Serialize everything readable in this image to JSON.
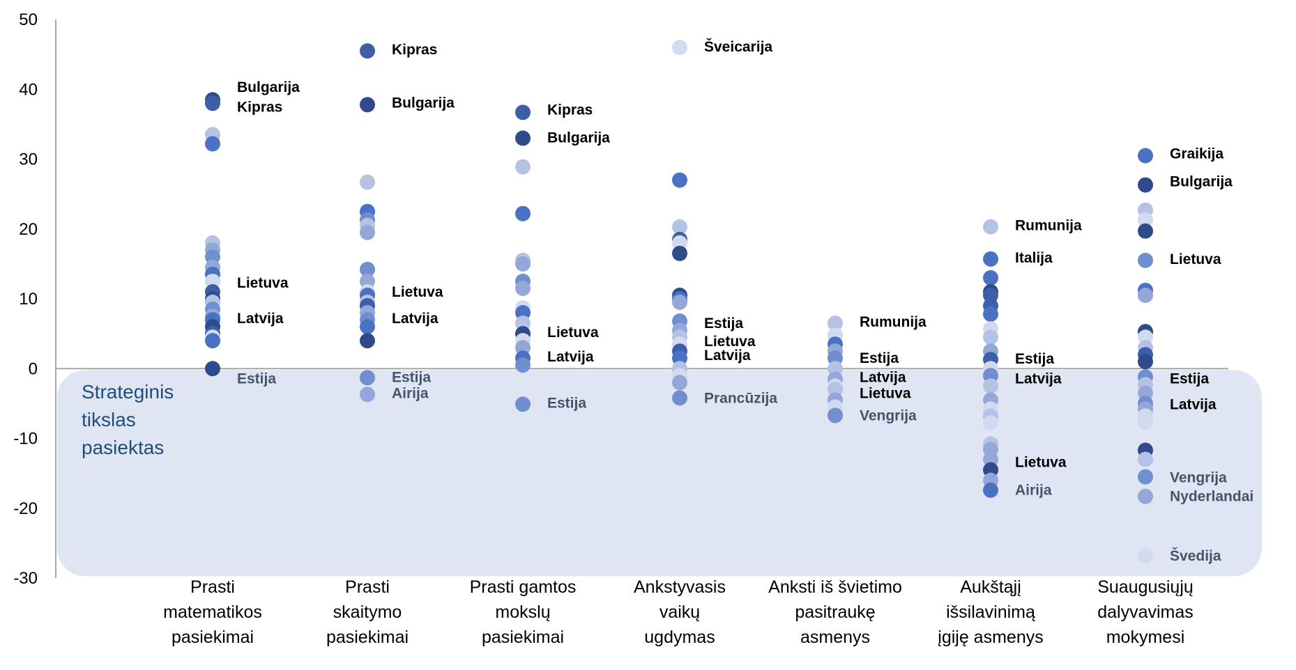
{
  "chart_data": {
    "type": "scatter",
    "title": "",
    "xlabel": "",
    "ylabel": "",
    "ylim": [
      -30,
      50
    ],
    "yticks": [
      50,
      40,
      30,
      20,
      10,
      0,
      -10,
      -20,
      -30
    ],
    "grid": false,
    "legend": "none",
    "zone": {
      "label_lines": [
        "Strateginis",
        "tikslas",
        "pasiektas"
      ],
      "y_range": [
        -30,
        0
      ],
      "color": "#dfe5f3"
    },
    "categories": [
      {
        "lines": [
          "Prasti",
          "matematikos",
          "pasiekimai"
        ]
      },
      {
        "lines": [
          "Prasti",
          "skaitymo",
          "pasiekimai"
        ]
      },
      {
        "lines": [
          "Prasti gamtos",
          "mokslų",
          "pasiekimai"
        ]
      },
      {
        "lines": [
          "Ankstyvasis",
          "vaikų",
          "ugdymas"
        ]
      },
      {
        "lines": [
          "Anksti iš švietimo",
          "pasitraukę",
          "asmenys"
        ]
      },
      {
        "lines": [
          "Aukštąjį",
          "išsilavinimą",
          "įgiję asmenys"
        ]
      },
      {
        "lines": [
          "Suaugusiųjų",
          "dalyvavimas",
          "mokymesi"
        ]
      }
    ],
    "colors": [
      "#2f4b8c",
      "#3c5fa8",
      "#4a72c4",
      "#6f8fcf",
      "#93a8d8",
      "#b5c2e4",
      "#d2daef"
    ],
    "points": [
      [
        [
          38.5,
          0
        ],
        [
          38.0,
          1
        ],
        [
          33.5,
          5
        ],
        [
          32.2,
          2
        ],
        [
          18.0,
          5
        ],
        [
          17.0,
          4
        ],
        [
          16.0,
          3
        ],
        [
          14.5,
          4
        ],
        [
          13.5,
          2
        ],
        [
          12.5,
          6
        ],
        [
          11.0,
          1
        ],
        [
          10.0,
          0
        ],
        [
          9.5,
          5
        ],
        [
          8.5,
          3
        ],
        [
          7.5,
          4
        ],
        [
          7.0,
          2
        ],
        [
          6.0,
          0
        ],
        [
          5.0,
          1
        ],
        [
          4.5,
          6
        ],
        [
          4.0,
          2
        ],
        [
          0.0,
          0
        ]
      ],
      [
        [
          45.5,
          1
        ],
        [
          37.8,
          0
        ],
        [
          26.7,
          5
        ],
        [
          22.5,
          2
        ],
        [
          21.3,
          3
        ],
        [
          20.5,
          5
        ],
        [
          19.5,
          4
        ],
        [
          14.2,
          3
        ],
        [
          12.5,
          4
        ],
        [
          11.0,
          6
        ],
        [
          10.5,
          2
        ],
        [
          9.5,
          5
        ],
        [
          9.0,
          1
        ],
        [
          8.0,
          4
        ],
        [
          7.0,
          3
        ],
        [
          6.0,
          2
        ],
        [
          4.0,
          0
        ],
        [
          -1.3,
          3
        ],
        [
          -3.7,
          4
        ]
      ],
      [
        [
          36.7,
          1
        ],
        [
          33.0,
          0
        ],
        [
          28.9,
          5
        ],
        [
          22.2,
          2
        ],
        [
          15.5,
          5
        ],
        [
          15.0,
          4
        ],
        [
          12.5,
          3
        ],
        [
          11.5,
          4
        ],
        [
          8.7,
          6
        ],
        [
          8.0,
          2
        ],
        [
          6.5,
          5
        ],
        [
          5.0,
          0
        ],
        [
          4.0,
          6
        ],
        [
          3.0,
          4
        ],
        [
          1.5,
          2
        ],
        [
          0.5,
          3
        ],
        [
          -5.1,
          3
        ]
      ],
      [
        [
          46.0,
          6
        ],
        [
          27.0,
          2
        ],
        [
          20.3,
          5
        ],
        [
          18.5,
          1
        ],
        [
          18.0,
          6
        ],
        [
          16.5,
          0
        ],
        [
          10.5,
          0
        ],
        [
          10.0,
          2
        ],
        [
          9.5,
          4
        ],
        [
          6.8,
          3
        ],
        [
          5.5,
          4
        ],
        [
          4.5,
          5
        ],
        [
          3.5,
          6
        ],
        [
          2.5,
          1
        ],
        [
          1.5,
          2
        ],
        [
          0.0,
          5
        ],
        [
          -1.0,
          6
        ],
        [
          -2.0,
          4
        ],
        [
          -4.2,
          3
        ]
      ],
      [
        [
          6.5,
          5
        ],
        [
          4.8,
          6
        ],
        [
          3.5,
          2
        ],
        [
          2.5,
          4
        ],
        [
          1.5,
          3
        ],
        [
          0.0,
          5
        ],
        [
          -1.5,
          4
        ],
        [
          -2.5,
          6
        ],
        [
          -3.0,
          5
        ],
        [
          -4.5,
          4
        ],
        [
          -5.5,
          6
        ],
        [
          -6.7,
          3
        ]
      ],
      [
        [
          20.3,
          5
        ],
        [
          15.7,
          2
        ],
        [
          13.0,
          2
        ],
        [
          11.0,
          0
        ],
        [
          10.5,
          1
        ],
        [
          9.0,
          1
        ],
        [
          7.8,
          2
        ],
        [
          5.7,
          6
        ],
        [
          4.5,
          5
        ],
        [
          2.5,
          4
        ],
        [
          1.3,
          1
        ],
        [
          0.0,
          6
        ],
        [
          -1.0,
          3
        ],
        [
          -2.5,
          5
        ],
        [
          -4.5,
          4
        ],
        [
          -5.8,
          6
        ],
        [
          -6.8,
          5
        ],
        [
          -7.8,
          6
        ],
        [
          -10.8,
          5
        ],
        [
          -11.6,
          4
        ],
        [
          -13.0,
          4
        ],
        [
          -14.5,
          0
        ],
        [
          -16.0,
          4
        ],
        [
          -17.4,
          2
        ]
      ],
      [
        [
          30.5,
          2
        ],
        [
          26.3,
          0
        ],
        [
          22.7,
          5
        ],
        [
          21.3,
          6
        ],
        [
          19.7,
          0
        ],
        [
          15.5,
          3
        ],
        [
          11.2,
          2
        ],
        [
          10.5,
          4
        ],
        [
          5.3,
          0
        ],
        [
          4.5,
          6
        ],
        [
          3.0,
          5
        ],
        [
          2.0,
          1
        ],
        [
          1.0,
          0
        ],
        [
          -1.2,
          3
        ],
        [
          -2.3,
          5
        ],
        [
          -3.5,
          4
        ],
        [
          -5.0,
          3
        ],
        [
          -5.8,
          4
        ],
        [
          -6.8,
          6
        ],
        [
          -7.7,
          6
        ],
        [
          -11.7,
          0
        ],
        [
          -13.0,
          5
        ],
        [
          -15.5,
          3
        ],
        [
          -18.3,
          4
        ],
        [
          -26.8,
          6
        ]
      ]
    ],
    "annotations": [
      [
        {
          "text": "Bulgarija",
          "y": 40.3,
          "style": "bold"
        },
        {
          "text": "Kipras",
          "y": 37.5,
          "style": "bold"
        },
        {
          "text": "Lietuva",
          "y": 12.3,
          "style": "bold"
        },
        {
          "text": "Latvija",
          "y": 7.2,
          "style": "bold"
        },
        {
          "text": "Estija",
          "y": -1.4,
          "style": "gray"
        }
      ],
      [
        {
          "text": "Kipras",
          "y": 45.7,
          "style": "bold"
        },
        {
          "text": "Bulgarija",
          "y": 38.1,
          "style": "bold"
        },
        {
          "text": "Lietuva",
          "y": 11.0,
          "style": "bold"
        },
        {
          "text": "Latvija",
          "y": 7.2,
          "style": "bold"
        },
        {
          "text": "Estija",
          "y": -1.2,
          "style": "gray"
        },
        {
          "text": "Airija",
          "y": -3.5,
          "style": "gray"
        }
      ],
      [
        {
          "text": "Kipras",
          "y": 37.1,
          "style": "bold"
        },
        {
          "text": "Bulgarija",
          "y": 33.1,
          "style": "bold"
        },
        {
          "text": "Lietuva",
          "y": 5.2,
          "style": "bold"
        },
        {
          "text": "Latvija",
          "y": 1.7,
          "style": "bold"
        },
        {
          "text": "Estija",
          "y": -4.9,
          "style": "gray"
        }
      ],
      [
        {
          "text": "Šveicarija",
          "y": 46.1,
          "style": "bold"
        },
        {
          "text": "Estija",
          "y": 6.5,
          "style": "bold"
        },
        {
          "text": "Lietuva",
          "y": 3.9,
          "style": "bold"
        },
        {
          "text": "Latvija",
          "y": 1.9,
          "style": "bold"
        },
        {
          "text": "Prancūzija",
          "y": -4.2,
          "style": "gray"
        }
      ],
      [
        {
          "text": "Rumunija",
          "y": 6.7,
          "style": "bold"
        },
        {
          "text": "Estija",
          "y": 1.5,
          "style": "bold"
        },
        {
          "text": "Latvija",
          "y": -1.2,
          "style": "bold"
        },
        {
          "text": "Lietuva",
          "y": -3.5,
          "style": "bold"
        },
        {
          "text": "Vengrija",
          "y": -6.7,
          "style": "gray"
        }
      ],
      [
        {
          "text": "Rumunija",
          "y": 20.5,
          "style": "bold"
        },
        {
          "text": "Italija",
          "y": 15.9,
          "style": "bold"
        },
        {
          "text": "Estija",
          "y": 1.4,
          "style": "bold"
        },
        {
          "text": "Latvija",
          "y": -1.4,
          "style": "bold"
        },
        {
          "text": "Lietuva",
          "y": -13.4,
          "style": "bold"
        },
        {
          "text": "Airija",
          "y": -17.4,
          "style": "gray"
        }
      ],
      [
        {
          "text": "Graikija",
          "y": 30.8,
          "style": "bold"
        },
        {
          "text": "Bulgarija",
          "y": 26.8,
          "style": "bold"
        },
        {
          "text": "Lietuva",
          "y": 15.7,
          "style": "bold"
        },
        {
          "text": "Estija",
          "y": -1.4,
          "style": "bold"
        },
        {
          "text": "Latvija",
          "y": -5.1,
          "style": "bold"
        },
        {
          "text": "Vengrija",
          "y": -15.6,
          "style": "gray"
        },
        {
          "text": "Nyderlandai",
          "y": -18.3,
          "style": "gray"
        },
        {
          "text": "Švedija",
          "y": -26.8,
          "style": "gray"
        }
      ]
    ]
  }
}
